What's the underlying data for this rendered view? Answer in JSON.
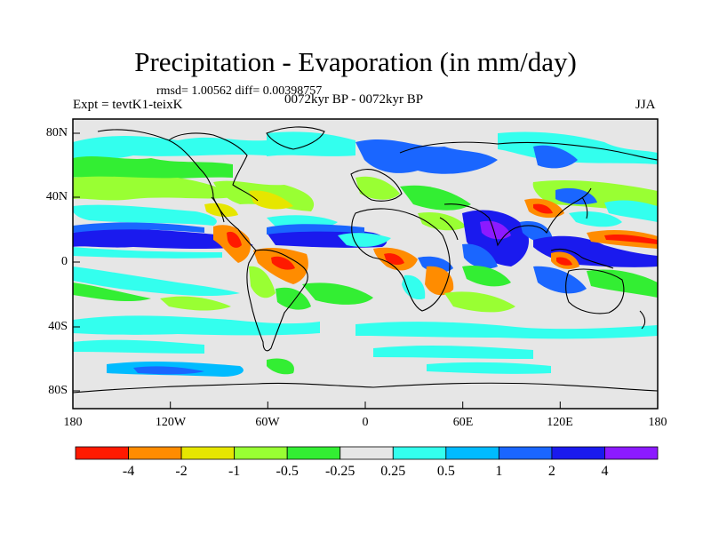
{
  "header": {
    "title": "Precipitation - Evaporation (in mm/day)",
    "stats": "rmsd= 1.00562 diff= 0.00398757",
    "experiment": "Expt = tevtK1-teixK",
    "period": "0072kyr BP - 0072kyr BP",
    "season": "JJA"
  },
  "axes": {
    "lat_labels": [
      "80N",
      "40N",
      "0",
      "40S",
      "80S"
    ],
    "lon_labels": [
      "180",
      "120W",
      "60W",
      "0",
      "60E",
      "120E",
      "180"
    ]
  },
  "colorbar": {
    "labels": [
      "-4",
      "-2",
      "-1",
      "-0.5",
      "-0.25",
      "0.25",
      "0.5",
      "1",
      "2",
      "4"
    ],
    "colors": [
      "#ff1a00",
      "#ff8c00",
      "#e6e600",
      "#99ff33",
      "#33ee33",
      "#e6e6e6",
      "#33ffee",
      "#00bbff",
      "#1a66ff",
      "#1a1aee",
      "#8c1aff"
    ]
  }
}
